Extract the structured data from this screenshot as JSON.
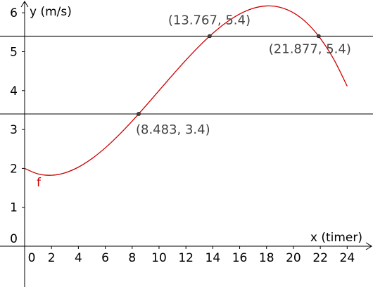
{
  "chart_data": {
    "type": "function-plot",
    "x_label": "x (timer)",
    "y_label": "y (m/s)",
    "xlim": [
      -1.832,
      25.92
    ],
    "ylim": [
      -1.049,
      6.329
    ],
    "xticks": [
      0,
      2,
      4,
      6,
      8,
      10,
      12,
      14,
      16,
      18,
      20,
      22,
      24
    ],
    "yticks": [
      0,
      1,
      2,
      3,
      4,
      5,
      6
    ],
    "series": [
      {
        "name": "f",
        "color": "#cc0000",
        "x": [
          0,
          1,
          2,
          3,
          4,
          5,
          6,
          7,
          8,
          9,
          10,
          11,
          12,
          13,
          14,
          15,
          16,
          17,
          18,
          19,
          20,
          21,
          22,
          23,
          24
        ],
        "values": [
          2,
          1.858,
          1.824,
          1.886,
          2.032,
          2.25,
          2.528,
          2.854,
          3.216,
          3.602,
          4,
          4.398,
          4.784,
          5.146,
          5.472,
          5.75,
          5.968,
          6.114,
          6.176,
          6.142,
          6,
          5.738,
          5.344,
          4.806,
          4.112
        ]
      }
    ],
    "hlines": [
      3.4,
      5.4
    ],
    "points": [
      {
        "x": 8.483,
        "y": 3.4,
        "label": "(8.483, 3.4)"
      },
      {
        "x": 13.767,
        "y": 5.4,
        "label": "(13.767, 5.4)"
      },
      {
        "x": 21.877,
        "y": 5.4,
        "label": "(21.877, 5.4)"
      }
    ]
  }
}
